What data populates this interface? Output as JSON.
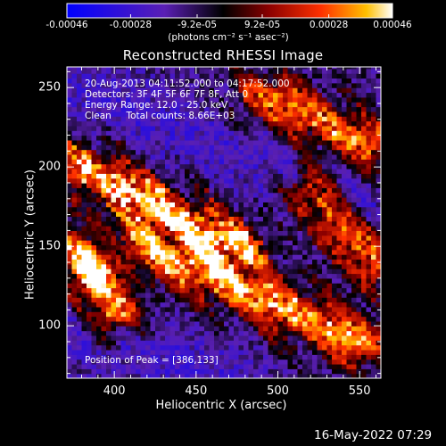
{
  "chart_data": {
    "type": "heatmap",
    "title": "Reconstructed RHESSI Image",
    "xlabel": "Heliocentric X (arcsec)",
    "ylabel": "Heliocentric Y (arcsec)",
    "xlim": [
      371,
      563
    ],
    "ylim": [
      67,
      263
    ],
    "x_ticks": [
      "400",
      "450",
      "500",
      "550"
    ],
    "x_tick_values": [
      400,
      450,
      500,
      550
    ],
    "y_ticks": [
      "250",
      "200",
      "150",
      "100"
    ],
    "y_tick_values": [
      250,
      200,
      150,
      100
    ],
    "colorbar": {
      "min": -0.00046,
      "max": 0.00046,
      "tick_labels": [
        "-0.00046",
        "-0.00028",
        "-9.2e-05",
        "9.2e-05",
        "0.00028",
        "0.00046"
      ],
      "tick_values": [
        -0.00046,
        -0.00028,
        -9.2e-05,
        9.2e-05,
        0.00028,
        0.00046
      ],
      "units_label": "(photons cm⁻² s⁻¹ asec⁻²)",
      "colormap": [
        "#0000ff",
        "#4b1fb0",
        "#000000",
        "#8a0000",
        "#ff2000",
        "#ffb000",
        "#ffffff"
      ]
    },
    "annotations": [
      "20-Aug-2013 04:11:52.000 to 04:17:52.000",
      "Detectors: 3F 4F 5F 6F 7F 8F, Att 0",
      "Energy Range: 12.0 - 25.0 keV",
      "Clean     Total counts: 8.66E+03"
    ],
    "peak_label": "Position of Peak = [386,133]",
    "peak_position": [
      386,
      133
    ],
    "bright_ridges": [
      {
        "from": [
          380,
          200
        ],
        "to": [
          475,
          150
        ],
        "level": 0.9
      },
      {
        "from": [
          420,
          150
        ],
        "to": [
          550,
          90
        ],
        "level": 0.85
      },
      {
        "from": [
          490,
          245
        ],
        "to": [
          555,
          215
        ],
        "level": 0.75
      },
      {
        "from": [
          520,
          185
        ],
        "to": [
          560,
          140
        ],
        "level": 0.75
      },
      {
        "from": [
          380,
          145
        ],
        "to": [
          400,
          110
        ],
        "level": 0.95
      }
    ],
    "dark_bands": [
      {
        "from": [
          371,
          250
        ],
        "to": [
          563,
          170
        ],
        "level": 0.3
      },
      {
        "from": [
          371,
          100
        ],
        "to": [
          470,
          67
        ],
        "level": 0.35
      }
    ]
  },
  "footer": {
    "date": "16-May-2022 07:29"
  }
}
